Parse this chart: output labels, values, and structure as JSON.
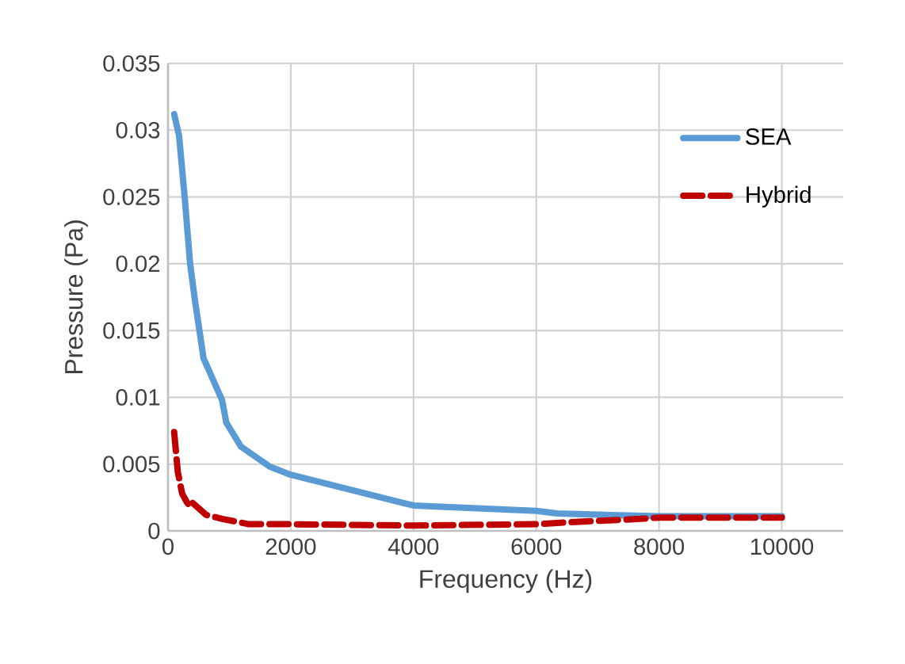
{
  "chart_data": {
    "type": "line",
    "xlabel": "Frequency (Hz)",
    "ylabel": "Pressure (Pa)",
    "xlim": [
      0,
      11000
    ],
    "ylim": [
      0,
      0.035
    ],
    "xticks": [
      0,
      2000,
      4000,
      6000,
      8000,
      10000
    ],
    "yticks": [
      0,
      0.005,
      0.01,
      0.015,
      0.02,
      0.025,
      0.03,
      0.035
    ],
    "grid": true,
    "legend": "top right",
    "marker": "none",
    "series": [
      {
        "name": "SEA",
        "color": "#5b9bd5",
        "line_style": "solid",
        "x": [
          100,
          180,
          275,
          360,
          450,
          580,
          620,
          880,
          950,
          1190,
          1660,
          2000,
          4000,
          6000,
          6340,
          8000,
          10000
        ],
        "values": [
          0.0312,
          0.0296,
          0.0248,
          0.02,
          0.0169,
          0.0129,
          0.0125,
          0.0098,
          0.0081,
          0.0063,
          0.0048,
          0.0042,
          0.0019,
          0.0015,
          0.0013,
          0.0011,
          0.0011
        ]
      },
      {
        "name": "Hybrid",
        "color": "#c00000",
        "line_style": "dashed",
        "x": [
          100,
          160,
          230,
          300,
          360,
          400,
          620,
          880,
          1320,
          2000,
          4000,
          6000,
          6340,
          7700,
          8000,
          10000
        ],
        "values": [
          0.0074,
          0.0044,
          0.0028,
          0.0022,
          0.0018,
          0.0021,
          0.0012,
          0.0009,
          0.0005,
          0.0005,
          0.0004,
          0.0005,
          0.0006,
          0.0009,
          0.001,
          0.001
        ]
      }
    ]
  }
}
